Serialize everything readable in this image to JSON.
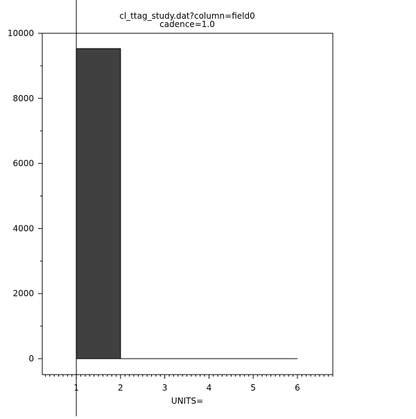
{
  "chart_data": {
    "type": "bar",
    "style": "histogram-step",
    "title": "cl_ttag_study.dat?column=field0",
    "subtitle": "cadence=1.0",
    "xlabel": "UNITS=",
    "ylabel": "",
    "bin_edges": [
      1,
      2,
      3,
      4,
      5,
      6
    ],
    "values": [
      9530,
      0,
      0,
      0,
      0
    ],
    "xlim": [
      0.23,
      6.8
    ],
    "ylim": [
      -490,
      10000
    ],
    "x_ticks": [
      1,
      2,
      3,
      4,
      5,
      6
    ],
    "x_tick_labels": [
      "1",
      "2",
      "3",
      "4",
      "5",
      "6"
    ],
    "y_ticks": [
      0,
      2000,
      4000,
      6000,
      8000,
      10000
    ],
    "y_tick_labels": [
      "0",
      "2000",
      "4000",
      "6000",
      "8000",
      "10000"
    ],
    "marker_line_x": 1,
    "grid": false,
    "colors": {
      "bar": "#404040",
      "axes": "#000000"
    }
  }
}
